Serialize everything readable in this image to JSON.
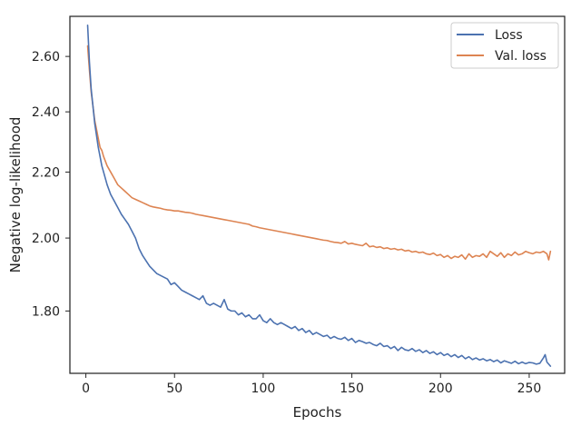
{
  "chart_data": {
    "type": "line",
    "title": "",
    "xlabel": "Epochs",
    "ylabel": "Negative log-likelihood",
    "xlim": [
      -9,
      270
    ],
    "ylim": [
      1.645,
      2.755
    ],
    "y_scale": "log",
    "xticks": [
      0,
      50,
      100,
      150,
      200,
      250
    ],
    "xtick_labels": [
      "0",
      "50",
      "100",
      "150",
      "200",
      "250"
    ],
    "yticks": [
      1.8,
      2.0,
      2.2,
      2.4,
      2.6
    ],
    "ytick_labels": [
      "1.80",
      "2.00",
      "2.20",
      "2.40",
      "2.60"
    ],
    "grid": false,
    "legend_position": "top-right",
    "series": [
      {
        "name": "Loss",
        "color": "#4c72b0",
        "x": [
          1,
          2,
          3,
          4,
          5,
          6,
          7,
          8,
          9,
          10,
          12,
          14,
          16,
          18,
          20,
          22,
          24,
          26,
          28,
          30,
          32,
          34,
          36,
          38,
          40,
          42,
          44,
          46,
          48,
          50,
          52,
          54,
          56,
          58,
          60,
          62,
          64,
          66,
          68,
          70,
          72,
          74,
          76,
          78,
          80,
          82,
          84,
          86,
          88,
          90,
          92,
          94,
          96,
          98,
          100,
          102,
          104,
          106,
          108,
          110,
          112,
          114,
          116,
          118,
          120,
          122,
          124,
          126,
          128,
          130,
          132,
          134,
          136,
          138,
          140,
          142,
          144,
          146,
          148,
          150,
          152,
          154,
          156,
          158,
          160,
          162,
          164,
          166,
          168,
          170,
          172,
          174,
          176,
          178,
          180,
          182,
          184,
          186,
          188,
          190,
          192,
          194,
          196,
          198,
          200,
          202,
          204,
          206,
          208,
          210,
          212,
          214,
          216,
          218,
          220,
          222,
          224,
          226,
          228,
          230,
          232,
          234,
          236,
          238,
          240,
          242,
          244,
          246,
          248,
          250,
          252,
          254,
          256,
          258,
          259,
          260,
          262
        ],
        "values": [
          2.72,
          2.58,
          2.48,
          2.42,
          2.36,
          2.32,
          2.28,
          2.25,
          2.22,
          2.2,
          2.16,
          2.13,
          2.11,
          2.09,
          2.07,
          2.055,
          2.04,
          2.02,
          2.0,
          1.97,
          1.95,
          1.935,
          1.92,
          1.91,
          1.9,
          1.895,
          1.89,
          1.885,
          1.87,
          1.875,
          1.865,
          1.855,
          1.85,
          1.845,
          1.84,
          1.835,
          1.83,
          1.84,
          1.82,
          1.815,
          1.82,
          1.815,
          1.81,
          1.83,
          1.805,
          1.8,
          1.8,
          1.79,
          1.795,
          1.785,
          1.79,
          1.78,
          1.78,
          1.79,
          1.775,
          1.77,
          1.78,
          1.77,
          1.765,
          1.77,
          1.765,
          1.76,
          1.755,
          1.76,
          1.75,
          1.755,
          1.745,
          1.75,
          1.74,
          1.745,
          1.74,
          1.735,
          1.738,
          1.73,
          1.735,
          1.73,
          1.728,
          1.733,
          1.725,
          1.73,
          1.72,
          1.725,
          1.722,
          1.718,
          1.72,
          1.715,
          1.712,
          1.718,
          1.71,
          1.712,
          1.705,
          1.71,
          1.7,
          1.708,
          1.702,
          1.7,
          1.705,
          1.698,
          1.702,
          1.695,
          1.7,
          1.693,
          1.697,
          1.69,
          1.695,
          1.688,
          1.692,
          1.685,
          1.69,
          1.683,
          1.688,
          1.68,
          1.685,
          1.678,
          1.682,
          1.677,
          1.68,
          1.675,
          1.678,
          1.673,
          1.677,
          1.67,
          1.675,
          1.672,
          1.669,
          1.674,
          1.668,
          1.672,
          1.668,
          1.671,
          1.67,
          1.667,
          1.669,
          1.682,
          1.69,
          1.672,
          1.662
        ]
      },
      {
        "name": "Val. loss",
        "color": "#dd8452",
        "x": [
          1,
          2,
          3,
          4,
          5,
          6,
          7,
          8,
          9,
          10,
          12,
          14,
          16,
          18,
          20,
          22,
          24,
          26,
          28,
          30,
          32,
          34,
          36,
          38,
          40,
          42,
          44,
          46,
          48,
          50,
          52,
          54,
          56,
          58,
          60,
          62,
          64,
          66,
          68,
          70,
          72,
          74,
          76,
          78,
          80,
          82,
          84,
          86,
          88,
          90,
          92,
          94,
          96,
          98,
          100,
          102,
          104,
          106,
          108,
          110,
          112,
          114,
          116,
          118,
          120,
          122,
          124,
          126,
          128,
          130,
          132,
          134,
          136,
          138,
          140,
          142,
          144,
          146,
          148,
          150,
          152,
          154,
          156,
          158,
          160,
          162,
          164,
          166,
          168,
          170,
          172,
          174,
          176,
          178,
          180,
          182,
          184,
          186,
          188,
          190,
          192,
          194,
          196,
          198,
          200,
          202,
          204,
          206,
          208,
          210,
          212,
          214,
          216,
          218,
          220,
          222,
          224,
          226,
          228,
          230,
          232,
          234,
          236,
          238,
          240,
          242,
          244,
          246,
          248,
          250,
          252,
          254,
          256,
          258,
          260,
          261,
          262
        ],
        "values": [
          2.64,
          2.55,
          2.47,
          2.42,
          2.37,
          2.34,
          2.31,
          2.28,
          2.27,
          2.25,
          2.22,
          2.2,
          2.18,
          2.16,
          2.15,
          2.14,
          2.13,
          2.12,
          2.115,
          2.11,
          2.105,
          2.1,
          2.095,
          2.092,
          2.09,
          2.088,
          2.085,
          2.083,
          2.082,
          2.08,
          2.08,
          2.078,
          2.076,
          2.075,
          2.073,
          2.07,
          2.068,
          2.066,
          2.064,
          2.062,
          2.06,
          2.058,
          2.056,
          2.054,
          2.052,
          2.05,
          2.048,
          2.046,
          2.044,
          2.042,
          2.04,
          2.035,
          2.033,
          2.03,
          2.028,
          2.026,
          2.024,
          2.022,
          2.02,
          2.018,
          2.016,
          2.014,
          2.012,
          2.01,
          2.008,
          2.006,
          2.004,
          2.002,
          2.0,
          1.998,
          1.996,
          1.994,
          1.993,
          1.99,
          1.988,
          1.987,
          1.985,
          1.99,
          1.983,
          1.985,
          1.982,
          1.98,
          1.978,
          1.985,
          1.975,
          1.977,
          1.973,
          1.975,
          1.97,
          1.972,
          1.968,
          1.97,
          1.966,
          1.968,
          1.963,
          1.965,
          1.96,
          1.962,
          1.958,
          1.96,
          1.955,
          1.953,
          1.957,
          1.95,
          1.953,
          1.945,
          1.95,
          1.942,
          1.948,
          1.945,
          1.952,
          1.94,
          1.955,
          1.945,
          1.95,
          1.948,
          1.955,
          1.945,
          1.962,
          1.955,
          1.948,
          1.958,
          1.945,
          1.955,
          1.95,
          1.96,
          1.952,
          1.955,
          1.962,
          1.958,
          1.955,
          1.96,
          1.958,
          1.962,
          1.955,
          1.938,
          1.962
        ]
      }
    ]
  }
}
